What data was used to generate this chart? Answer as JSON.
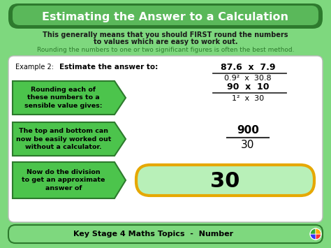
{
  "title": "Estimating the Answer to a Calculation",
  "subtitle1": "This generally means that you should FIRST round the numbers",
  "subtitle2": "to values which are easy to work out.",
  "subtitle3": "Rounding the numbers to one or two significant figures is often the best method.",
  "arrow1_text": "Rounding each of\nthese numbers to a\nsensible value gives:",
  "arrow2_text": "The top and bottom can\nnow be easily worked out\nwithout a calculator.",
  "arrow3_text": "Now do the division\nto get an approximate\nanswer of",
  "fraction_top": "87.6  x  7.9",
  "fraction_bottom": "0.9²  x  30.8",
  "rounded_top": "90  x  10",
  "rounded_bottom": "1²  x  30",
  "calc_top": "900",
  "calc_bottom": "30",
  "answer": "30",
  "footer": "Key Stage 4 Maths Topics  -  Number",
  "bg_outer": "#7ed87e",
  "bg_inner": "#ffffff",
  "title_bg_dark": "#2d7a2d",
  "title_bg_light": "#5ab85a",
  "title_color": "#ffffff",
  "arrow_fill": "#4cc44c",
  "arrow_border": "#2d7a2d",
  "answer_fill": "#b8f0b8",
  "answer_border": "#e6a800",
  "green_text": "#2d7a2d",
  "dark_text": "#000000",
  "subtitle_color": "#1a1a1a",
  "line_color": "#333333"
}
